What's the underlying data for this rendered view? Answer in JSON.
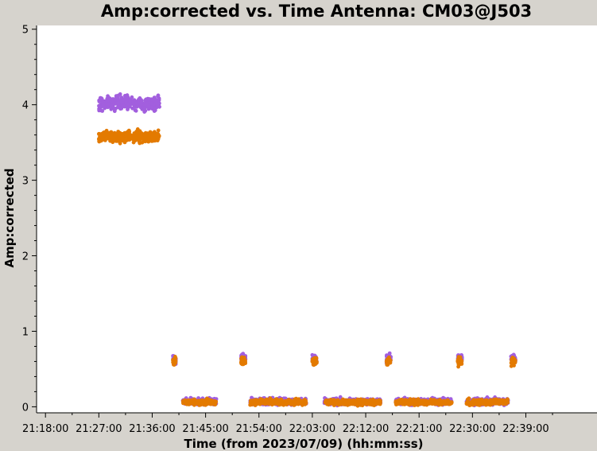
{
  "chart_data": {
    "type": "scatter",
    "title": "Amp:corrected vs. Time Antenna: CM03@J503",
    "xlabel": "Time (from 2023/07/09) (hh:mm:ss)",
    "ylabel": "Amp:corrected",
    "x_ticks": [
      "21:18:00",
      "21:27:00",
      "21:36:00",
      "21:45:00",
      "21:54:00",
      "22:03:00",
      "22:12:00",
      "22:21:00",
      "22:30:00",
      "22:39:00"
    ],
    "y_ticks": [
      "0",
      "1",
      "2",
      "3",
      "4",
      "5"
    ],
    "xlim": [
      "21:16:30",
      "22:51:00"
    ],
    "ylim": [
      -0.08,
      5.05
    ],
    "grid": false,
    "colors": {
      "purple": "#a25fde",
      "orange": "#e37a00",
      "background": "#d6d3cd",
      "plot_bg": "#ffffff"
    },
    "series": [
      {
        "color": "purple",
        "clusters": [
          {
            "start": "21:27:00",
            "end": "21:37:15",
            "mean": 4.02,
            "spread": 0.09
          },
          {
            "start": "21:39:30",
            "end": "21:40:00",
            "mean": 0.63,
            "spread": 0.05
          },
          {
            "start": "21:41:10",
            "end": "21:46:50",
            "mean": 0.07,
            "spread": 0.04
          },
          {
            "start": "21:51:00",
            "end": "21:51:45",
            "mean": 0.64,
            "spread": 0.05
          },
          {
            "start": "21:52:30",
            "end": "22:02:00",
            "mean": 0.07,
            "spread": 0.04
          },
          {
            "start": "22:03:00",
            "end": "22:03:45",
            "mean": 0.64,
            "spread": 0.05
          },
          {
            "start": "22:05:00",
            "end": "22:14:30",
            "mean": 0.07,
            "spread": 0.04
          },
          {
            "start": "22:15:30",
            "end": "22:16:15",
            "mean": 0.64,
            "spread": 0.05
          },
          {
            "start": "22:17:00",
            "end": "22:26:30",
            "mean": 0.07,
            "spread": 0.04
          },
          {
            "start": "22:27:30",
            "end": "22:28:15",
            "mean": 0.64,
            "spread": 0.05
          },
          {
            "start": "22:29:00",
            "end": "22:36:00",
            "mean": 0.07,
            "spread": 0.04
          },
          {
            "start": "22:36:30",
            "end": "22:37:15",
            "mean": 0.64,
            "spread": 0.05
          }
        ]
      },
      {
        "color": "orange",
        "clusters": [
          {
            "start": "21:27:00",
            "end": "21:37:15",
            "mean": 3.58,
            "spread": 0.07
          },
          {
            "start": "21:39:30",
            "end": "21:40:00",
            "mean": 0.6,
            "spread": 0.05
          },
          {
            "start": "21:41:10",
            "end": "21:46:50",
            "mean": 0.06,
            "spread": 0.035
          },
          {
            "start": "21:51:00",
            "end": "21:51:45",
            "mean": 0.6,
            "spread": 0.05
          },
          {
            "start": "21:52:30",
            "end": "22:02:00",
            "mean": 0.06,
            "spread": 0.035
          },
          {
            "start": "22:03:00",
            "end": "22:03:45",
            "mean": 0.6,
            "spread": 0.05
          },
          {
            "start": "22:05:00",
            "end": "22:14:30",
            "mean": 0.06,
            "spread": 0.035
          },
          {
            "start": "22:15:30",
            "end": "22:16:15",
            "mean": 0.6,
            "spread": 0.05
          },
          {
            "start": "22:17:00",
            "end": "22:26:30",
            "mean": 0.06,
            "spread": 0.035
          },
          {
            "start": "22:27:30",
            "end": "22:28:15",
            "mean": 0.6,
            "spread": 0.05
          },
          {
            "start": "22:29:00",
            "end": "22:36:00",
            "mean": 0.06,
            "spread": 0.035
          },
          {
            "start": "22:36:30",
            "end": "22:37:15",
            "mean": 0.6,
            "spread": 0.05
          }
        ]
      }
    ]
  }
}
